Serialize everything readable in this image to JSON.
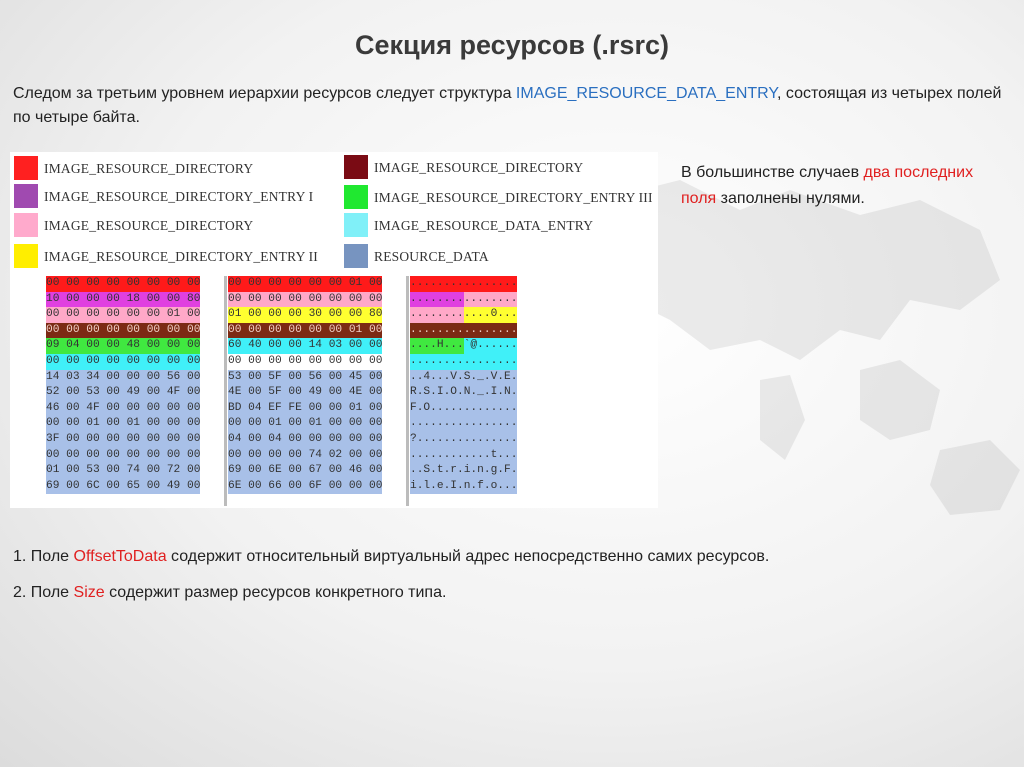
{
  "title": "Секция ресурсов (.rsrc)",
  "intro": {
    "before": "Следом за третьим уровнем иерархии ресурсов следует структура ",
    "highlight": "IMAGE_RESOURCE_DATA_ENTRY",
    "after": ", состоящая из четырех полей по четыре байта."
  },
  "legend": [
    {
      "color": "#ff2020",
      "label": "IMAGE_RESOURCE_DIRECTORY"
    },
    {
      "color": "#a04ab0",
      "label": "IMAGE_RESOURCE_DIRECTORY_ENTRY I"
    },
    {
      "color": "#ffaacc",
      "label": "IMAGE_RESOURCE_DIRECTORY"
    },
    {
      "color": "#ffee00",
      "label": "IMAGE_RESOURCE_DIRECTORY_ENTRY II"
    },
    {
      "color": "#7a0b14",
      "label": "IMAGE_RESOURCE_DIRECTORY"
    },
    {
      "color": "#20e830",
      "label": "IMAGE_RESOURCE_DIRECTORY_ENTRY III"
    },
    {
      "color": "#80f0f8",
      "label": "IMAGE_RESOURCE_DATA_ENTRY"
    },
    {
      "color": "#7794c0",
      "label": "RESOURCE_DATA"
    }
  ],
  "colors": {
    "red": "#ff1a1a",
    "magenta": "#e040e0",
    "pink": "#ffa8c8",
    "yellow": "#ffff30",
    "maroon": "#7c2a14",
    "green": "#40e840",
    "cyan": "#40f0f8",
    "blue": "#a8c0e8",
    "white": "#ffffff"
  },
  "hexdump": [
    {
      "left": [
        [
          "00 00 00 00 00 00 00 00",
          "red"
        ]
      ],
      "mid": [
        [
          "00 00 00 00 00 00 01 00",
          "red"
        ]
      ],
      "ascii": [
        [
          "................",
          "red"
        ]
      ]
    },
    {
      "left": [
        [
          "10 00 00 00 18 00 00 80",
          "magenta"
        ]
      ],
      "mid": [
        [
          "00 00 00 00 00 00 00 00",
          "pink"
        ]
      ],
      "ascii": [
        [
          "........",
          "magenta"
        ],
        [
          "........",
          "pink"
        ]
      ]
    },
    {
      "left": [
        [
          "00 00 00 00 00 00 01 00",
          "pink"
        ]
      ],
      "mid": [
        [
          "01 00 00 00 30 00 00 80",
          "yellow"
        ]
      ],
      "ascii": [
        [
          "........",
          "pink"
        ],
        [
          "....0...",
          "yellow"
        ]
      ]
    },
    {
      "left": [
        [
          "00 00 00 00 00 00 00 00",
          "maroon"
        ]
      ],
      "mid": [
        [
          "00 00 00 00 00 00 01 00",
          "maroon"
        ]
      ],
      "ascii": [
        [
          "................",
          "maroon"
        ]
      ]
    },
    {
      "left": [
        [
          "09 04 00 00 48 00 00 00",
          "green"
        ]
      ],
      "mid": [
        [
          "60 40 00 00 14 03 00 00",
          "cyan"
        ]
      ],
      "ascii": [
        [
          "....H...",
          "green"
        ],
        [
          "`@......",
          "cyan"
        ]
      ]
    },
    {
      "left": [
        [
          "00 00 00 00 00 00 00 00",
          "cyan"
        ]
      ],
      "mid": [
        [
          "00 00 00 00 00 00 00 00",
          "white"
        ]
      ],
      "ascii": [
        [
          "................",
          "cyan"
        ]
      ]
    },
    {
      "left": [
        [
          "14 03 34 00 00 00 56 00",
          "blue"
        ]
      ],
      "mid": [
        [
          "53 00 5F 00 56 00 45 00",
          "blue"
        ]
      ],
      "ascii": [
        [
          "..4...V.S._.V.E.",
          "blue"
        ]
      ]
    },
    {
      "left": [
        [
          "52 00 53 00 49 00 4F 00",
          "blue"
        ]
      ],
      "mid": [
        [
          "4E 00 5F 00 49 00 4E 00",
          "blue"
        ]
      ],
      "ascii": [
        [
          "R.S.I.O.N._.I.N.",
          "blue"
        ]
      ]
    },
    {
      "left": [
        [
          "46 00 4F 00 00 00 00 00",
          "blue"
        ]
      ],
      "mid": [
        [
          "BD 04 EF FE 00 00 01 00",
          "blue"
        ]
      ],
      "ascii": [
        [
          "F.O.............",
          "blue"
        ]
      ]
    },
    {
      "left": [
        [
          "00 00 01 00 01 00 00 00",
          "blue"
        ]
      ],
      "mid": [
        [
          "00 00 01 00 01 00 00 00",
          "blue"
        ]
      ],
      "ascii": [
        [
          "................",
          "blue"
        ]
      ]
    },
    {
      "left": [
        [
          "3F 00 00 00 00 00 00 00",
          "blue"
        ]
      ],
      "mid": [
        [
          "04 00 04 00 00 00 00 00",
          "blue"
        ]
      ],
      "ascii": [
        [
          "?...............",
          "blue"
        ]
      ]
    },
    {
      "left": [
        [
          "00 00 00 00 00 00 00 00",
          "blue"
        ]
      ],
      "mid": [
        [
          "00 00 00 00 74 02 00 00",
          "blue"
        ]
      ],
      "ascii": [
        [
          "............t...",
          "blue"
        ]
      ]
    },
    {
      "left": [
        [
          "01 00 53 00 74 00 72 00",
          "blue"
        ]
      ],
      "mid": [
        [
          "69 00 6E 00 67 00 46 00",
          "blue"
        ]
      ],
      "ascii": [
        [
          "..S.t.r.i.n.g.F.",
          "blue"
        ]
      ]
    },
    {
      "left": [
        [
          "69 00 6C 00 65 00 49 00",
          "blue"
        ]
      ],
      "mid": [
        [
          "6E 00 66 00 6F 00 00 00",
          "blue"
        ]
      ],
      "ascii": [
        [
          "i.l.e.I.n.f.o...",
          "blue"
        ]
      ]
    }
  ],
  "side_note": {
    "before": "В большинстве случаев ",
    "highlight": "два последних поля",
    "after": " заполнены нулями."
  },
  "bullets": [
    {
      "before": "1. Поле ",
      "highlight": "OffsetToData",
      "after": " содержит относительный виртуальный адрес непосредственно самих ресурсов."
    },
    {
      "before": "2. Поле ",
      "highlight": "Size",
      "after": " содержит размер ресурсов конкретного типа."
    }
  ]
}
